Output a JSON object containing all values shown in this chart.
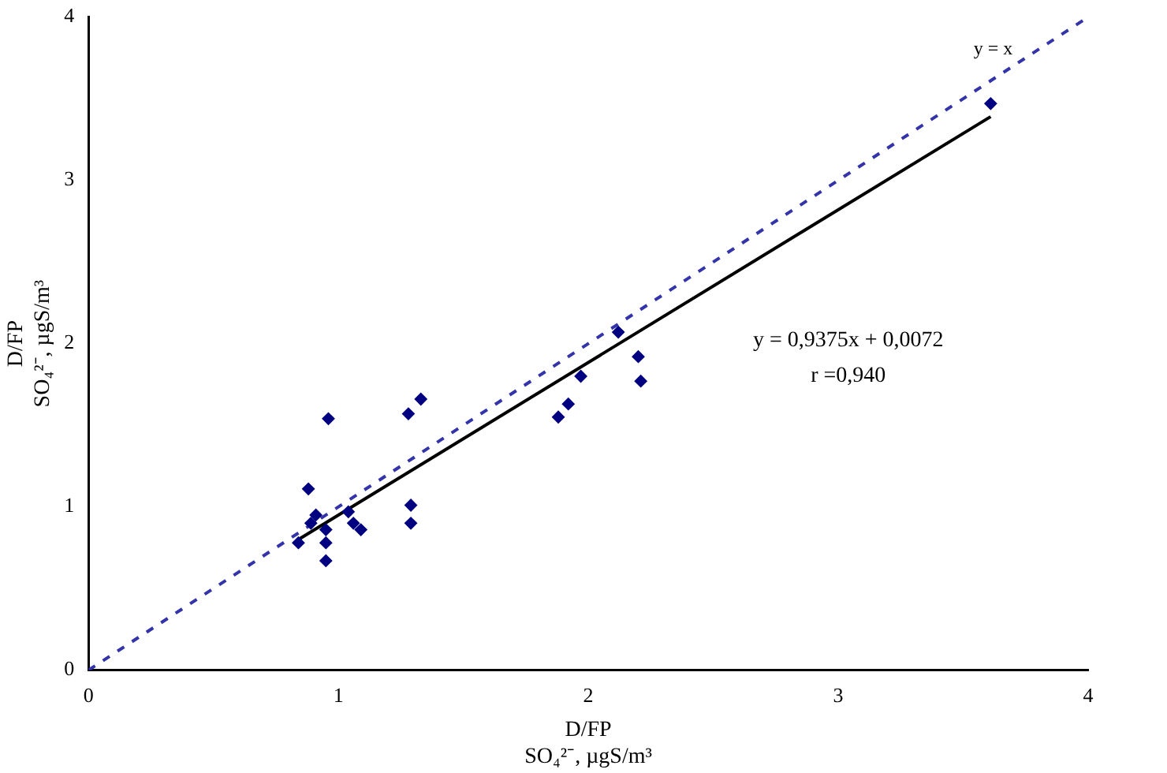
{
  "chart_data": {
    "type": "scatter",
    "xlabel": "D/FP\nSO₄²⁻, µgS/m³",
    "ylabel": "D/FP\nSO₄²⁻, µgS/m³",
    "xlim": [
      0,
      4
    ],
    "xticks": [
      0,
      1,
      2,
      3,
      4
    ],
    "ylim": [
      0,
      4
    ],
    "yticks": [
      0,
      1,
      2,
      3,
      4
    ],
    "grid": false,
    "legend": false,
    "marker": "diamond",
    "series": [
      {
        "type": "scatter",
        "color": "#000080",
        "x": [
          0.84,
          0.88,
          0.91,
          0.89,
          0.95,
          0.95,
          0.95,
          0.96,
          1.04,
          1.06,
          1.09,
          1.28,
          1.33,
          1.29,
          1.29,
          1.88,
          1.92,
          1.97,
          2.12,
          2.2,
          2.21,
          3.61
        ],
        "values": [
          0.78,
          1.11,
          0.95,
          0.9,
          0.86,
          0.78,
          0.67,
          1.54,
          0.97,
          0.9,
          0.86,
          1.57,
          1.66,
          1.01,
          0.9,
          1.55,
          1.63,
          1.8,
          2.07,
          1.92,
          1.77,
          3.47
        ]
      },
      {
        "type": "line",
        "color": "#000000",
        "line_style": "solid",
        "marker": "none",
        "x": [
          0.84,
          3.61
        ],
        "values": [
          0.8,
          3.39
        ]
      },
      {
        "type": "line",
        "color": "#3333aa",
        "line_style": "dashed",
        "marker": "none",
        "x": [
          0,
          4
        ],
        "values": [
          0,
          4
        ]
      }
    ],
    "annotations": [
      "y = x",
      "y = 0,9375x + 0,0072",
      "r =0,940"
    ]
  }
}
